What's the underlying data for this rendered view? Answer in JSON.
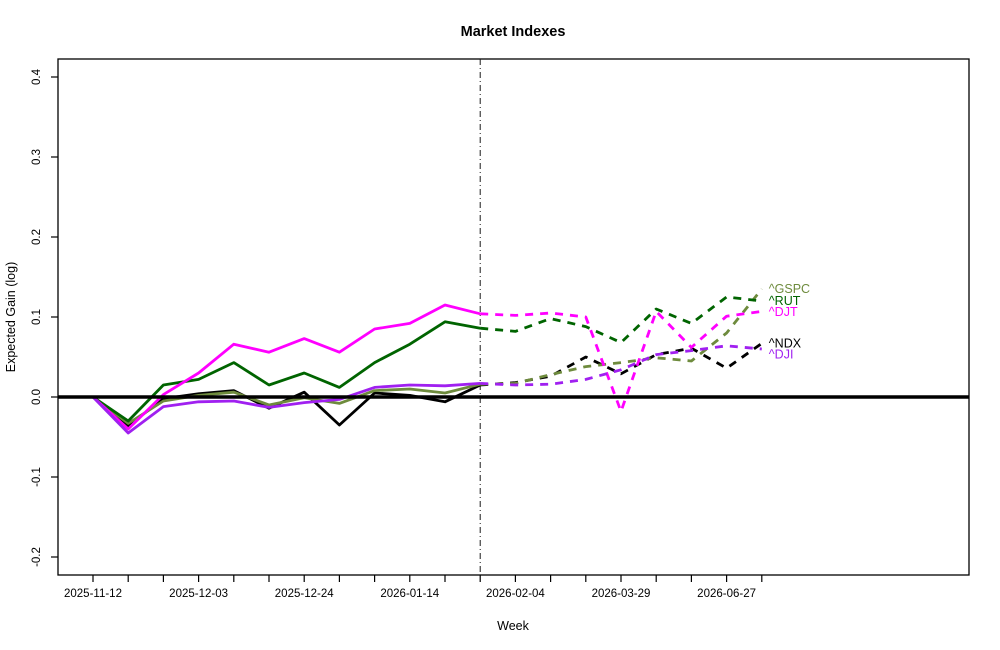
{
  "chart_data": {
    "type": "line",
    "title": "Market Indexes",
    "xlabel": "Week",
    "ylabel": "Expected Gain (log)",
    "ylim": [
      -0.22,
      0.42
    ],
    "grid": false,
    "legend_position": "right-end-labels",
    "y_tick_labels": [
      "-0.2",
      "-0.1",
      "0.0",
      "0.1",
      "0.2",
      "0.3",
      "0.4"
    ],
    "y_tick_values": [
      -0.2,
      -0.1,
      0.0,
      0.1,
      0.2,
      0.3,
      0.4
    ],
    "x_tick_count": 20,
    "x_labeled_ticks": [
      {
        "index": 0,
        "label": "2025-11-12"
      },
      {
        "index": 3,
        "label": "2025-12-03"
      },
      {
        "index": 6,
        "label": "2025-12-24"
      },
      {
        "index": 9,
        "label": "2026-01-14"
      },
      {
        "index": 12,
        "label": "2026-02-04"
      },
      {
        "index": 15,
        "label": "2026-03-29"
      },
      {
        "index": 18,
        "label": "2026-06-27"
      }
    ],
    "zero_line": true,
    "forecast_boundary_index": 11,
    "boundary_line_style": "dash-dot",
    "solid_until_index": 11,
    "series": [
      {
        "name": "^NDX",
        "color": "#000000",
        "values": [
          0.0,
          -0.036,
          -0.002,
          0.004,
          0.008,
          -0.014,
          0.006,
          -0.035,
          0.005,
          0.002,
          -0.006,
          0.015,
          0.018,
          0.026,
          0.05,
          0.029,
          0.053,
          0.061,
          0.036,
          0.067
        ]
      },
      {
        "name": "^GSPC",
        "color": "#6E8B3D",
        "values": [
          0.0,
          -0.033,
          -0.005,
          0.002,
          0.006,
          -0.01,
          -0.001,
          -0.008,
          0.008,
          0.01,
          0.005,
          0.016,
          0.017,
          0.028,
          0.038,
          0.043,
          0.049,
          0.045,
          0.08,
          0.135
        ]
      },
      {
        "name": "^RUT",
        "color": "#006400",
        "values": [
          0.0,
          -0.03,
          0.015,
          0.022,
          0.043,
          0.015,
          0.03,
          0.012,
          0.043,
          0.066,
          0.094,
          0.086,
          0.082,
          0.098,
          0.088,
          0.068,
          0.11,
          0.092,
          0.125,
          0.12
        ]
      },
      {
        "name": "^DJT",
        "color": "#FF00FF",
        "values": [
          0.0,
          -0.04,
          0.003,
          0.03,
          0.066,
          0.056,
          0.073,
          0.056,
          0.085,
          0.092,
          0.115,
          0.104,
          0.102,
          0.105,
          0.1,
          -0.018,
          0.107,
          0.062,
          0.101,
          0.107
        ]
      },
      {
        "name": "^DJI",
        "color": "#A020F0",
        "values": [
          0.0,
          -0.045,
          -0.012,
          -0.006,
          -0.005,
          -0.013,
          -0.007,
          -0.003,
          0.012,
          0.015,
          0.014,
          0.017,
          0.015,
          0.016,
          0.022,
          0.034,
          0.053,
          0.058,
          0.064,
          0.06
        ]
      }
    ]
  }
}
